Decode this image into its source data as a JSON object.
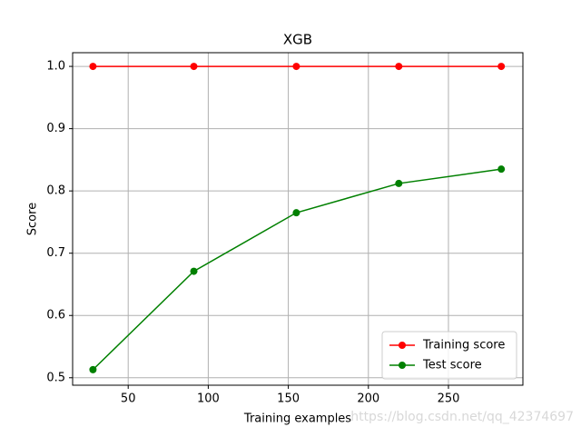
{
  "chart_data": {
    "type": "line",
    "title": "XGB",
    "xlabel": "Training examples",
    "ylabel": "Score",
    "x": [
      28,
      91,
      155,
      219,
      283
    ],
    "series": [
      {
        "name": "Training score",
        "color": "#ff0000",
        "values": [
          1.0,
          1.0,
          1.0,
          1.0,
          1.0
        ]
      },
      {
        "name": "Test score",
        "color": "#008000",
        "values": [
          0.513,
          0.671,
          0.765,
          0.812,
          0.835
        ]
      }
    ],
    "xlim": [
      15.3,
      296.5
    ],
    "xticks": [
      50,
      100,
      150,
      200,
      250
    ],
    "ylim": [
      0.488,
      1.022
    ],
    "yticks": [
      0.5,
      0.6,
      0.7,
      0.8,
      0.9,
      {
        "value": 1.0,
        "label": "1.0"
      }
    ],
    "grid": true,
    "legend": "lower right",
    "watermark": "https://blog.csdn.net/qq_42374697"
  }
}
